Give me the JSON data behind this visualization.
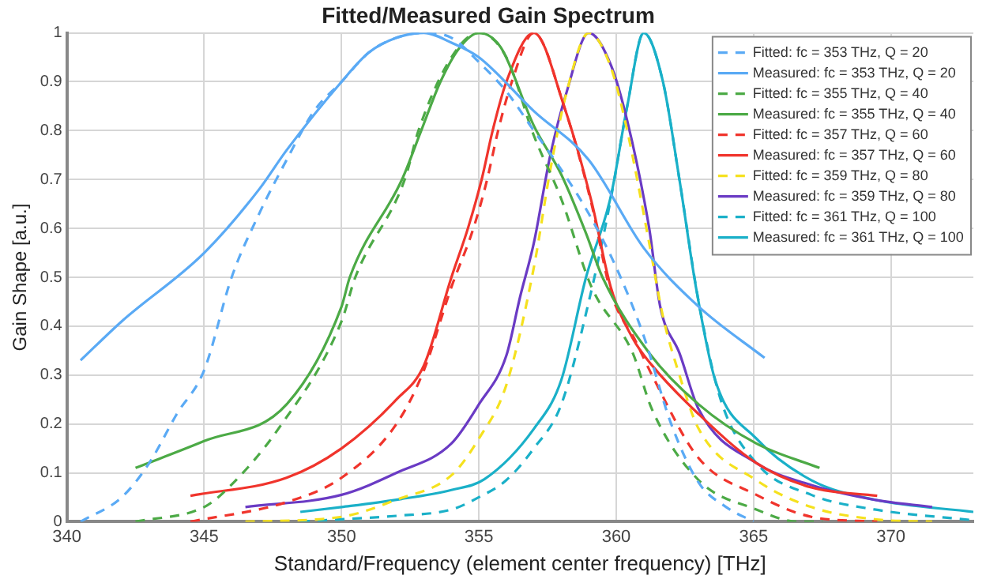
{
  "chart_data": {
    "type": "line",
    "title": "Fitted/Measured Gain Spectrum",
    "xlabel": "Standard/Frequency (element center frequency) [THz]",
    "ylabel": "Gain Shape [a.u.]",
    "xlim": [
      340,
      373
    ],
    "xticks": [
      340,
      345,
      350,
      355,
      360,
      365,
      370
    ],
    "ylim": [
      0,
      1
    ],
    "yticks": [
      0,
      0.1,
      0.2,
      0.3,
      0.4,
      0.5,
      0.6,
      0.7,
      0.8,
      0.9,
      1
    ],
    "grid": true,
    "legend": "top right",
    "marker": "none",
    "series": [
      {
        "name": "Fitted: fc = 353 THz, Q = 20",
        "color": "#5aaaf5",
        "line_style": "dashed",
        "x": [
          340.5,
          342,
          343,
          344,
          345,
          346,
          347,
          348,
          349,
          350,
          351,
          352,
          353,
          354,
          355,
          356,
          357,
          358,
          359,
          360,
          361,
          362,
          363,
          364,
          365
        ],
        "values": [
          0,
          0.05,
          0.12,
          0.22,
          0.31,
          0.5,
          0.63,
          0.74,
          0.84,
          0.9,
          0.96,
          0.99,
          1,
          0.99,
          0.94,
          0.88,
          0.8,
          0.72,
          0.63,
          0.52,
          0.38,
          0.2,
          0.08,
          0.03,
          0
        ]
      },
      {
        "name": "Measured: fc = 353 THz, Q = 20",
        "color": "#5aaaf5",
        "line_style": "solid",
        "x": [
          340.5,
          342,
          345,
          347,
          348,
          350,
          351,
          352,
          353,
          354,
          355,
          357,
          359,
          361,
          363,
          365.4
        ],
        "values": [
          0.33,
          0.41,
          0.55,
          0.68,
          0.76,
          0.9,
          0.96,
          0.99,
          1,
          0.98,
          0.95,
          0.84,
          0.74,
          0.56,
          0.44,
          0.335
        ]
      },
      {
        "name": "Fitted: fc = 355 THz, Q = 40",
        "color": "#4caa46",
        "line_style": "dashed",
        "x": [
          342.5,
          345,
          345.8,
          347.7,
          350,
          350.5,
          352.3,
          352.8,
          354,
          355,
          356,
          357,
          358,
          359.1,
          360.6,
          361.3,
          363,
          365.1,
          366.6,
          367.5
        ],
        "values": [
          0,
          0.03,
          0.065,
          0.19,
          0.41,
          0.5,
          0.7,
          0.8,
          0.95,
          1,
          0.95,
          0.79,
          0.66,
          0.48,
          0.345,
          0.23,
          0.085,
          0.025,
          0,
          0
        ]
      },
      {
        "name": "Measured: fc = 355 THz, Q = 40",
        "color": "#4caa46",
        "line_style": "solid",
        "x": [
          342.5,
          345,
          348,
          350,
          350.3,
          352.2,
          352.9,
          353.6,
          354.3,
          355,
          355.8,
          357,
          358,
          358.9,
          359.5,
          361.2,
          363,
          365.1,
          367.4
        ],
        "values": [
          0.11,
          0.165,
          0.24,
          0.44,
          0.5,
          0.7,
          0.8,
          0.9,
          0.97,
          1,
          0.97,
          0.81,
          0.71,
          0.59,
          0.5,
          0.345,
          0.24,
          0.16,
          0.11
        ]
      },
      {
        "name": "Fitted: fc = 357 THz, Q = 60",
        "color": "#f0342c",
        "line_style": "dashed",
        "x": [
          344.5,
          348,
          350,
          352,
          353,
          354,
          354.8,
          355.3,
          355.7,
          356.2,
          357,
          358.1,
          359.1,
          359.8,
          360.7,
          361.3,
          363,
          365.1,
          367.1,
          369.5
        ],
        "values": [
          0,
          0.04,
          0.09,
          0.2,
          0.31,
          0.48,
          0.6,
          0.7,
          0.8,
          0.9,
          1,
          0.85,
          0.65,
          0.47,
          0.37,
          0.3,
          0.13,
          0.055,
          0.01,
          0
        ]
      },
      {
        "name": "Measured: fc = 357 THz, Q = 60",
        "color": "#f0342c",
        "line_style": "solid",
        "x": [
          344.5,
          348,
          350,
          352,
          353,
          354,
          354.6,
          355.1,
          355.5,
          356,
          357,
          358.1,
          359.1,
          359.8,
          360.6,
          361.3,
          363,
          365.1,
          367.1,
          369.5
        ],
        "values": [
          0.053,
          0.09,
          0.15,
          0.25,
          0.32,
          0.5,
          0.6,
          0.7,
          0.8,
          0.9,
          1,
          0.85,
          0.655,
          0.48,
          0.375,
          0.32,
          0.22,
          0.12,
          0.07,
          0.053
        ]
      },
      {
        "name": "Fitted: fc = 359 THz, Q = 80",
        "color": "#f5e11e",
        "line_style": "dashed",
        "x": [
          346.5,
          350,
          352,
          354,
          355,
          356,
          357,
          357.6,
          358.2,
          359,
          359.8,
          360.4,
          361.2,
          361.7,
          362.3,
          363,
          365.1,
          367.1,
          369.4,
          371.5
        ],
        "values": [
          0,
          0.01,
          0.045,
          0.095,
          0.17,
          0.28,
          0.52,
          0.72,
          0.88,
          1,
          0.93,
          0.8,
          0.57,
          0.42,
          0.3,
          0.19,
          0.085,
          0.03,
          0.005,
          0
        ]
      },
      {
        "name": "Measured: fc = 359 THz, Q = 80",
        "color": "#6a3bc4",
        "line_style": "solid",
        "x": [
          346.5,
          350,
          352,
          354,
          355,
          356,
          356.5,
          357,
          357.6,
          358.2,
          359,
          359.8,
          360.4,
          361.2,
          361.6,
          362.3,
          363,
          365.1,
          367.1,
          369.4,
          371.5
        ],
        "values": [
          0.03,
          0.055,
          0.1,
          0.16,
          0.24,
          0.34,
          0.46,
          0.57,
          0.75,
          0.88,
          1,
          0.935,
          0.82,
          0.6,
          0.44,
          0.345,
          0.23,
          0.12,
          0.075,
          0.045,
          0.03
        ]
      },
      {
        "name": "Fitted: fc = 361 THz, Q = 100",
        "color": "#1ab0c8",
        "line_style": "dashed",
        "x": [
          348.5,
          350,
          352,
          354,
          355,
          356,
          357,
          358,
          359,
          359.8,
          360.4,
          361,
          361.7,
          362.3,
          363,
          363.8,
          365.1,
          367.1,
          369.4,
          373
        ],
        "values": [
          0,
          0.005,
          0.012,
          0.025,
          0.05,
          0.085,
          0.15,
          0.24,
          0.45,
          0.66,
          0.85,
          1,
          0.9,
          0.7,
          0.45,
          0.25,
          0.12,
          0.055,
          0.025,
          0.003
        ]
      },
      {
        "name": "Measured: fc = 361 THz, Q = 100",
        "color": "#1ab0c8",
        "line_style": "solid",
        "x": [
          348.5,
          350,
          352,
          354,
          355.2,
          357,
          358,
          358.9,
          359.8,
          360.4,
          361,
          361.7,
          362.3,
          362.9,
          363.6,
          365.1,
          367.1,
          369.4,
          373
        ],
        "values": [
          0.02,
          0.03,
          0.045,
          0.065,
          0.087,
          0.19,
          0.29,
          0.5,
          0.665,
          0.85,
          1,
          0.9,
          0.7,
          0.48,
          0.29,
          0.17,
          0.085,
          0.045,
          0.02
        ]
      }
    ]
  }
}
